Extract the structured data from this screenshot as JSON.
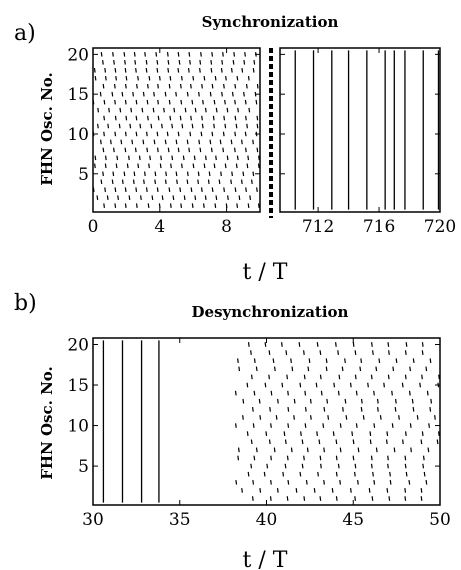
{
  "chart_data": [
    {
      "type": "raster",
      "panel_label": "a)",
      "title": "Synchronization",
      "ylabel": "FHN Osc. No.",
      "xlabel": "t / T",
      "y_ticks": [
        5,
        10,
        15,
        20
      ],
      "ylim": [
        0.2,
        20.8
      ],
      "subplots": [
        {
          "xlim": [
            0,
            10
          ],
          "x_ticks": [
            0,
            4,
            8
          ],
          "pattern": "desynchronized",
          "period": 0.65,
          "spike_halfheight": 0.28
        },
        {
          "xlim": [
            709.5,
            720
          ],
          "x_ticks": [
            712,
            716,
            720
          ],
          "pattern": "synchronized",
          "spike_times": [
            710.5,
            711.7,
            712.9,
            714.0,
            715.2,
            716.4,
            717.0,
            717.7,
            718.9,
            719.9
          ]
        }
      ]
    },
    {
      "type": "raster",
      "panel_label": "b)",
      "title": "Desynchronization",
      "ylabel": "FHN Osc. No.",
      "xlabel": "t / T",
      "y_ticks": [
        5,
        10,
        15,
        20
      ],
      "ylim": [
        0.2,
        20.8
      ],
      "xlim": [
        30,
        50
      ],
      "x_ticks": [
        30,
        35,
        40,
        45,
        50
      ],
      "synchronized_spike_times": [
        30.6,
        31.7,
        32.8,
        33.8
      ],
      "desync_start": 38.2,
      "desync_end": 50,
      "period": 1.0,
      "spike_halfheight": 0.28
    }
  ]
}
